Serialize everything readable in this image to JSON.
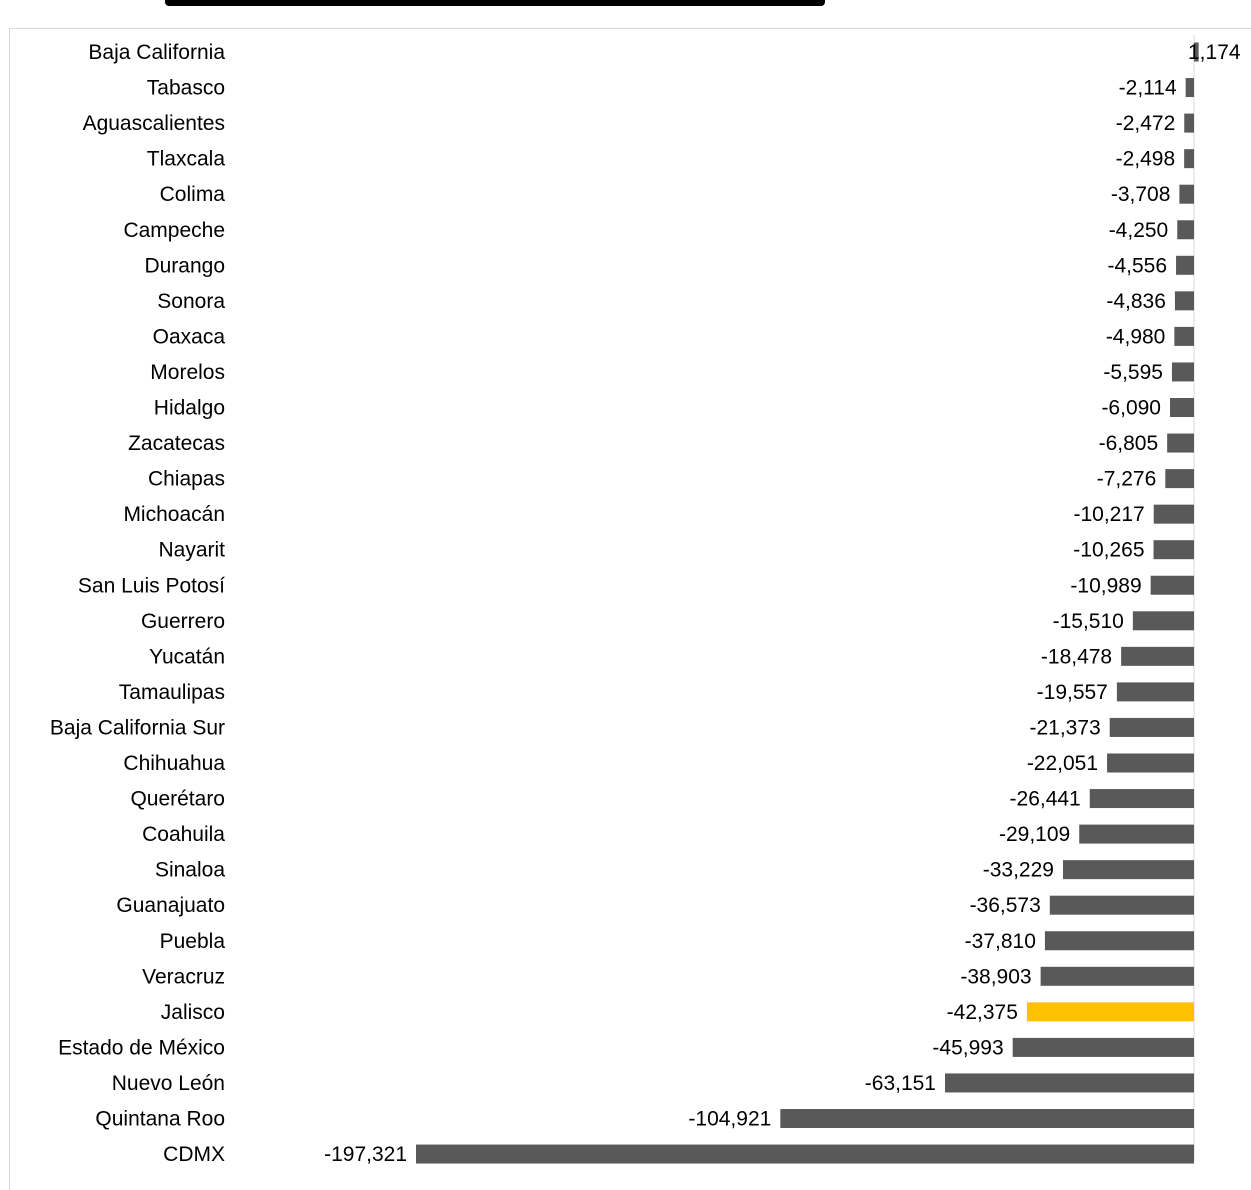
{
  "chart_data": {
    "type": "bar",
    "orientation": "horizontal",
    "categories": [
      "Baja California",
      "Tabasco",
      "Aguascalientes",
      "Tlaxcala",
      "Colima",
      "Campeche",
      "Durango",
      "Sonora",
      "Oaxaca",
      "Morelos",
      "Hidalgo",
      "Zacatecas",
      "Chiapas",
      "Michoacán",
      "Nayarit",
      "San Luis Potosí",
      "Guerrero",
      "Yucatán",
      "Tamaulipas",
      "Baja California Sur",
      "Chihuahua",
      "Querétaro",
      "Coahuila",
      "Sinaloa",
      "Guanajuato",
      "Puebla",
      "Veracruz",
      "Jalisco",
      "Estado de México",
      "Nuevo León",
      "Quintana Roo",
      "CDMX"
    ],
    "values": [
      1174,
      -2114,
      -2472,
      -2498,
      -3708,
      -4250,
      -4556,
      -4836,
      -4980,
      -5595,
      -6090,
      -6805,
      -7276,
      -10217,
      -10265,
      -10989,
      -15510,
      -18478,
      -19557,
      -21373,
      -22051,
      -26441,
      -29109,
      -33229,
      -36573,
      -37810,
      -38903,
      -42375,
      -45993,
      -63151,
      -104921,
      -197321
    ],
    "labels": [
      "1,174",
      "-2,114",
      "-2,472",
      "-2,498",
      "-3,708",
      "-4,250",
      "-4,556",
      "-4,836",
      "-4,980",
      "-5,595",
      "-6,090",
      "-6,805",
      "-7,276",
      "-10,217",
      "-10,265",
      "-10,989",
      "-15,510",
      "-18,478",
      "-19,557",
      "-21,373",
      "-22,051",
      "-26,441",
      "-29,109",
      "-33,229",
      "-36,573",
      "-37,810",
      "-38,903",
      "-42,375",
      "-45,993",
      "-63,151",
      "-104,921",
      "-197,321"
    ],
    "highlight": "Jalisco",
    "colors": {
      "bar": "#595959",
      "highlight": "#FFC000",
      "axis": "#d9d9d9"
    },
    "grid": false,
    "legend": "none",
    "title": "",
    "xlabel": "",
    "ylabel": ""
  }
}
